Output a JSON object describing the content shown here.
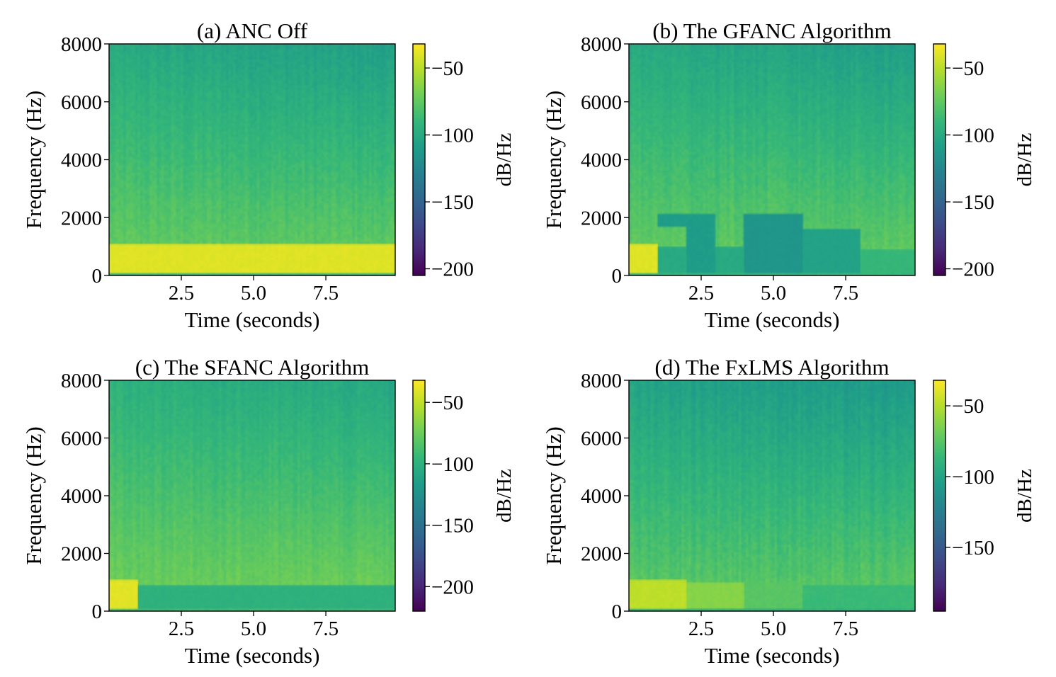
{
  "chart_data": [
    {
      "type": "heatmap",
      "title": "(a) ANC Off",
      "xlabel": "Time (seconds)",
      "ylabel": "Frequency (Hz)",
      "xlim": [
        0,
        9.9
      ],
      "ylim": [
        0,
        8000
      ],
      "xticks": [
        "2.5",
        "5.0",
        "7.5"
      ],
      "yticks": [
        "0",
        "2000",
        "4000",
        "6000",
        "8000"
      ],
      "colorbar": {
        "label": "dB/Hz",
        "range": [
          -205,
          -32
        ],
        "ticks": [
          "−50",
          "−100",
          "−150",
          "−200"
        ],
        "tick_values": [
          -50,
          -100,
          -150,
          -200
        ]
      },
      "bands": [
        {
          "t0": 0,
          "t1": 9.9,
          "f0": 80,
          "f1": 1100,
          "level": -40
        }
      ]
    },
    {
      "type": "heatmap",
      "title": "(b) The GFANC Algorithm",
      "xlabel": "Time (seconds)",
      "ylabel": "Frequency (Hz)",
      "xlim": [
        0,
        9.9
      ],
      "ylim": [
        0,
        8000
      ],
      "xticks": [
        "2.5",
        "5.0",
        "7.5"
      ],
      "yticks": [
        "0",
        "2000",
        "4000",
        "6000",
        "8000"
      ],
      "colorbar": {
        "label": "dB/Hz",
        "range": [
          -205,
          -32
        ],
        "ticks": [
          "−50",
          "−100",
          "−150",
          "−200"
        ],
        "tick_values": [
          -50,
          -100,
          -150,
          -200
        ]
      },
      "bands": [
        {
          "t0": 0,
          "t1": 1,
          "f0": 80,
          "f1": 1100,
          "level": -40
        },
        {
          "t0": 1,
          "t1": 2,
          "f0": 1700,
          "f1": 2100,
          "level": -110
        },
        {
          "t0": 1,
          "t1": 2,
          "f0": 100,
          "f1": 1000,
          "level": -100
        },
        {
          "t0": 2,
          "t1": 3,
          "f0": 100,
          "f1": 2100,
          "level": -110
        },
        {
          "t0": 3,
          "t1": 4,
          "f0": 100,
          "f1": 1000,
          "level": -100
        },
        {
          "t0": 4,
          "t1": 6,
          "f0": 100,
          "f1": 2100,
          "level": -115
        },
        {
          "t0": 6,
          "t1": 8,
          "f0": 100,
          "f1": 1600,
          "level": -105
        },
        {
          "t0": 8,
          "t1": 9.9,
          "f0": 100,
          "f1": 900,
          "level": -90
        }
      ]
    },
    {
      "type": "heatmap",
      "title": "(c) The SFANC Algorithm",
      "xlabel": "Time (seconds)",
      "ylabel": "Frequency (Hz)",
      "xlim": [
        0,
        9.9
      ],
      "ylim": [
        0,
        8000
      ],
      "xticks": [
        "2.5",
        "5.0",
        "7.5"
      ],
      "yticks": [
        "0",
        "2000",
        "4000",
        "6000",
        "8000"
      ],
      "colorbar": {
        "label": "dB/Hz",
        "range": [
          -220,
          -32
        ],
        "ticks": [
          "−50",
          "−100",
          "−150",
          "−200"
        ],
        "tick_values": [
          -50,
          -100,
          -150,
          -200
        ]
      },
      "bands": [
        {
          "t0": 0,
          "t1": 1,
          "f0": 80,
          "f1": 1100,
          "level": -40
        },
        {
          "t0": 1,
          "t1": 9.9,
          "f0": 100,
          "f1": 900,
          "level": -100
        }
      ]
    },
    {
      "type": "heatmap",
      "title": "(d) The FxLMS Algorithm",
      "xlabel": "Time (seconds)",
      "ylabel": "Frequency (Hz)",
      "xlim": [
        0,
        9.9
      ],
      "ylim": [
        0,
        8000
      ],
      "xticks": [
        "2.5",
        "5.0",
        "7.5"
      ],
      "yticks": [
        "0",
        "2000",
        "4000",
        "6000",
        "8000"
      ],
      "colorbar": {
        "label": "dB/Hz",
        "range": [
          -195,
          -32
        ],
        "ticks": [
          "−50",
          "−100",
          "−150"
        ],
        "tick_values": [
          -50,
          -100,
          -150
        ]
      },
      "bands": [
        {
          "t0": 0,
          "t1": 2,
          "f0": 80,
          "f1": 1100,
          "level": -48
        },
        {
          "t0": 2,
          "t1": 4,
          "f0": 100,
          "f1": 1000,
          "level": -62
        },
        {
          "t0": 4,
          "t1": 6,
          "f0": 100,
          "f1": 1000,
          "level": -75
        },
        {
          "t0": 6,
          "t1": 9.9,
          "f0": 100,
          "f1": 900,
          "level": -85
        }
      ]
    }
  ]
}
